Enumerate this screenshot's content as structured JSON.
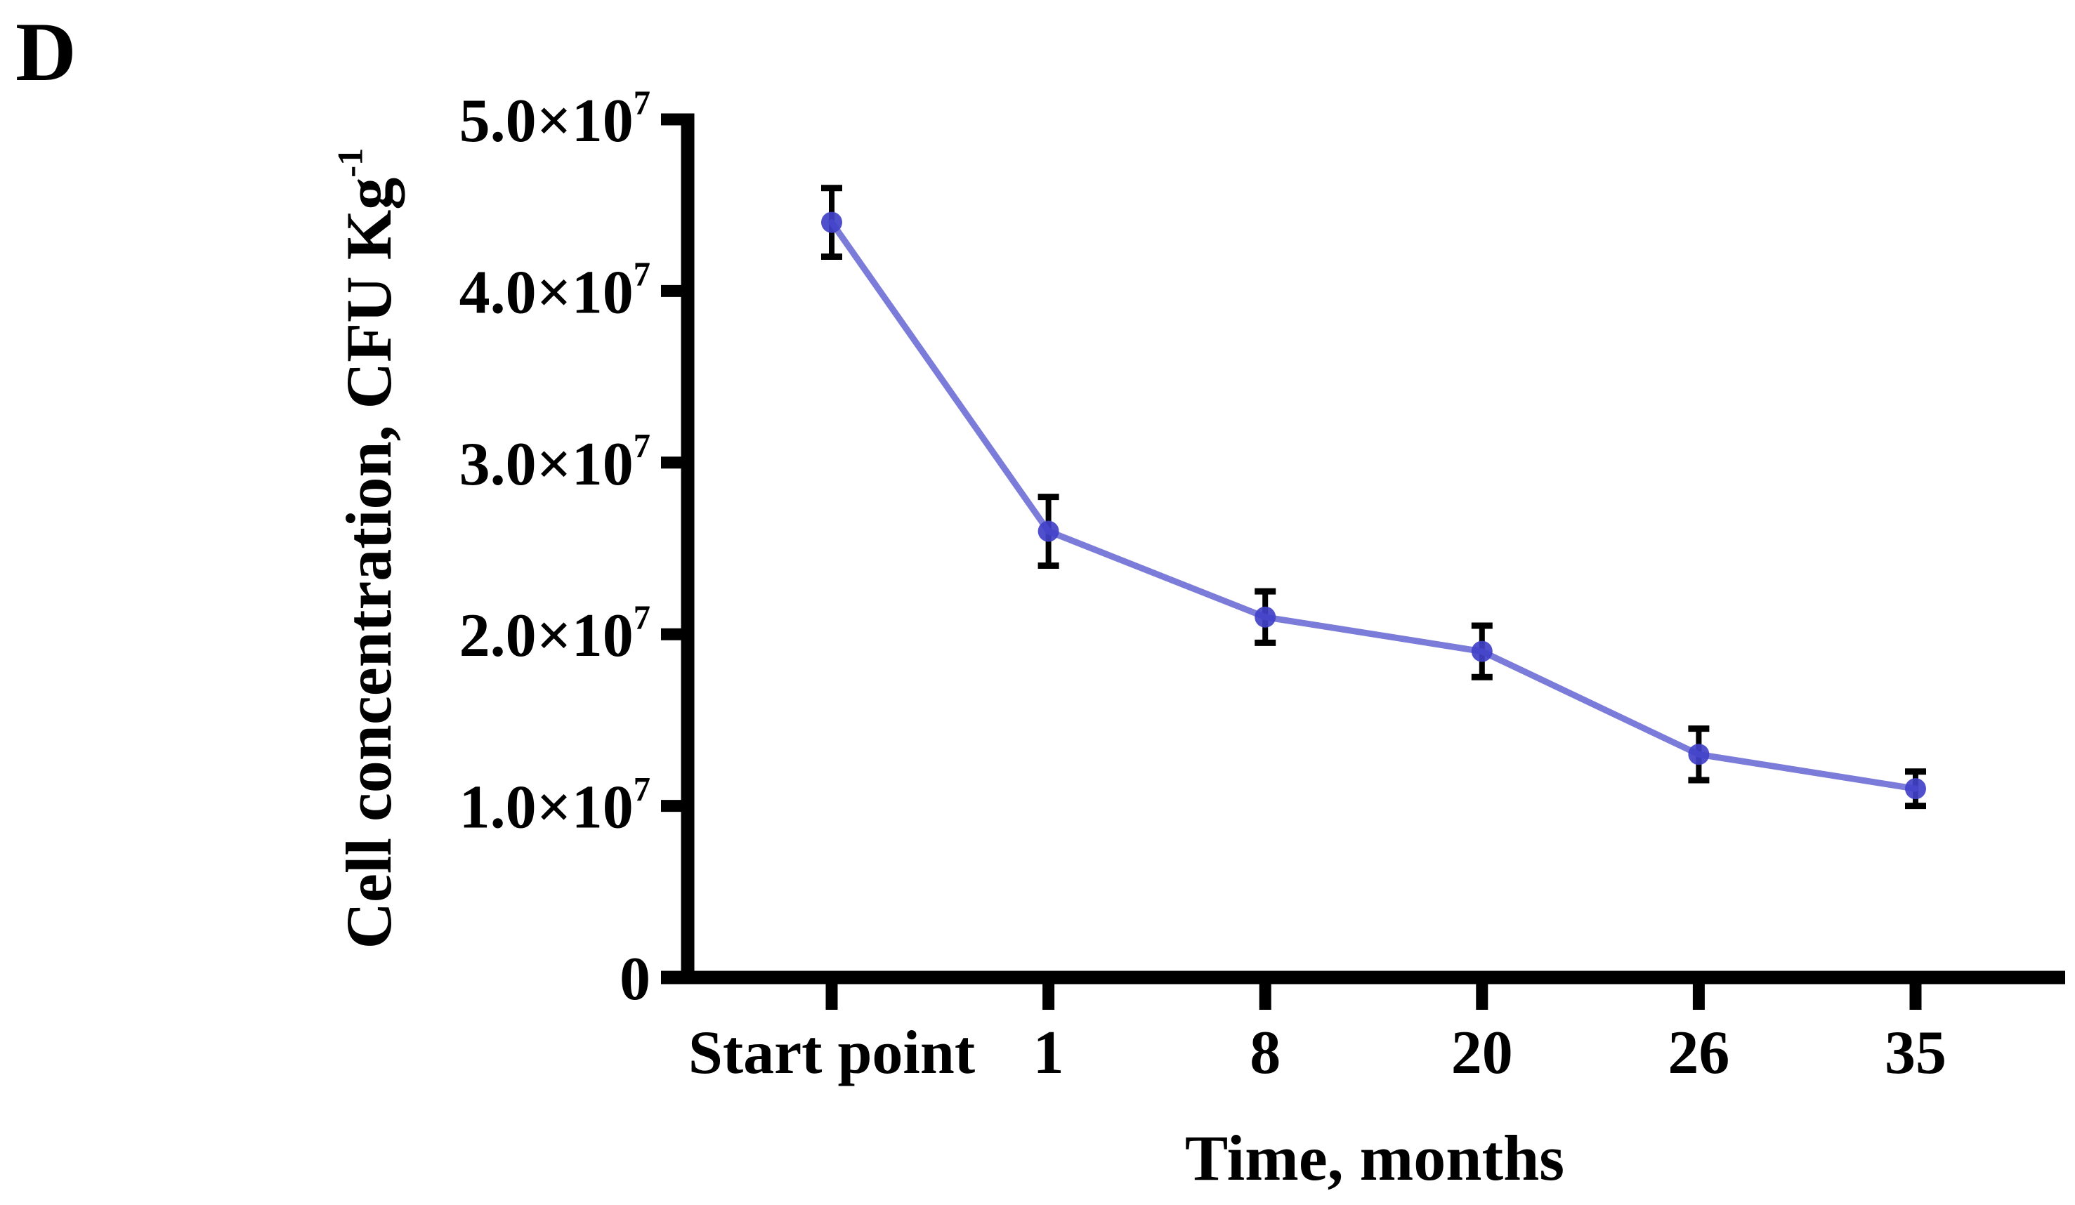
{
  "panel_label": "D",
  "chart_data": {
    "type": "line",
    "categories": [
      "Start point",
      "1",
      "8",
      "20",
      "26",
      "35"
    ],
    "values": [
      44000000,
      26000000,
      21000000,
      19000000,
      13000000,
      11000000
    ],
    "errors": [
      2000000,
      2000000,
      1500000,
      1500000,
      1500000,
      1000000
    ],
    "xlabel": "Time, months",
    "ylabel": "Cell concentration, CFU Kg⁻¹",
    "ylim": [
      0,
      50000000
    ],
    "yticks": [
      {
        "value": 0,
        "label": "0"
      },
      {
        "value": 10000000,
        "label": "1.0×10⁷"
      },
      {
        "value": 20000000,
        "label": "2.0×10⁷"
      },
      {
        "value": 30000000,
        "label": "3.0×10⁷"
      },
      {
        "value": 40000000,
        "label": "4.0×10⁷"
      },
      {
        "value": 50000000,
        "label": "5.0×10⁷"
      }
    ],
    "grid": false,
    "legend_position": "none",
    "marker": "circle",
    "error_bars": true,
    "colors": {
      "line": "#7b7bd9",
      "marker": "#4141c9",
      "error_bar": "#000000",
      "axis": "#000000",
      "text": "#000000",
      "background": "#ffffff"
    }
  }
}
